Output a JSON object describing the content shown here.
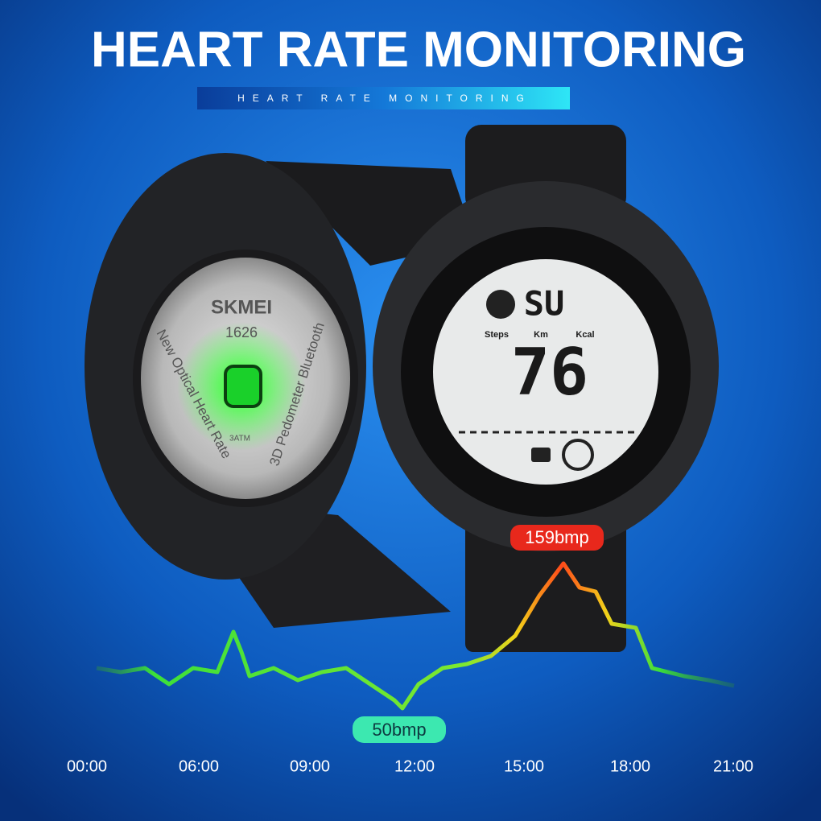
{
  "header": {
    "title": "HEART RATE MONITORING",
    "subtitle": "HEART RATE MONITORING"
  },
  "watch_back": {
    "brand": "SKMEI",
    "model": "1626",
    "left_text": "New Optical Heart Rate",
    "right_text": "3D Pedometer Bluetooth",
    "water": "3ATM"
  },
  "watch_face": {
    "top_digits": "SU",
    "labels": [
      "Steps",
      "Km",
      "Kcal"
    ],
    "main_digits": "76"
  },
  "heart_rate": {
    "peak": "159bmp",
    "low": "50bmp"
  },
  "timeline": [
    "00:00",
    "06:00",
    "09:00",
    "12:00",
    "15:00",
    "18:00",
    "21:00"
  ]
}
